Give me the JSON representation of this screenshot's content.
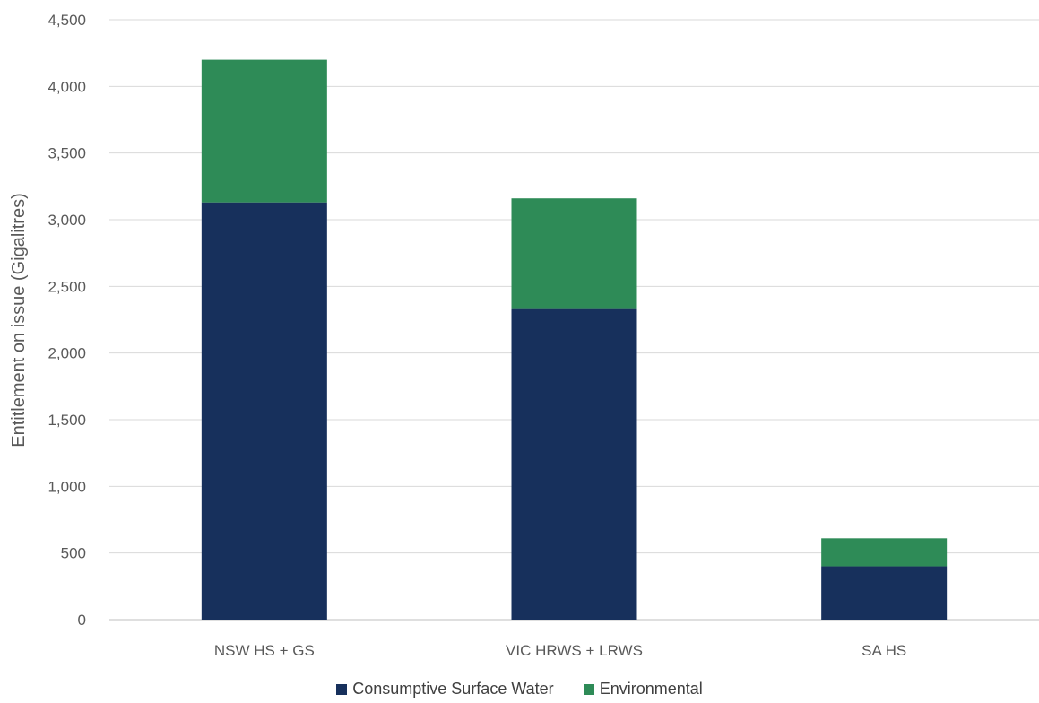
{
  "chart_data": {
    "type": "bar",
    "stacked": true,
    "title": "",
    "xlabel": "",
    "ylabel": "Entitlement on issue (Gigalitres)",
    "ylim": [
      0,
      4500
    ],
    "y_ticks": [
      0,
      500,
      1000,
      1500,
      2000,
      2500,
      3000,
      3500,
      4000,
      4500
    ],
    "y_tick_labels": [
      "0",
      "500",
      "1,000",
      "1,500",
      "2,000",
      "2,500",
      "3,000",
      "3,500",
      "4,000",
      "4,500"
    ],
    "grid": true,
    "legend_position": "bottom",
    "categories": [
      "NSW HS + GS",
      "VIC HRWS + LRWS",
      "SA HS"
    ],
    "series": [
      {
        "name": "Consumptive Surface Water",
        "color": "#17305c",
        "values": [
          3130,
          2330,
          400
        ]
      },
      {
        "name": "Environmental",
        "color": "#2e8b57",
        "values": [
          1070,
          830,
          210
        ]
      }
    ]
  }
}
